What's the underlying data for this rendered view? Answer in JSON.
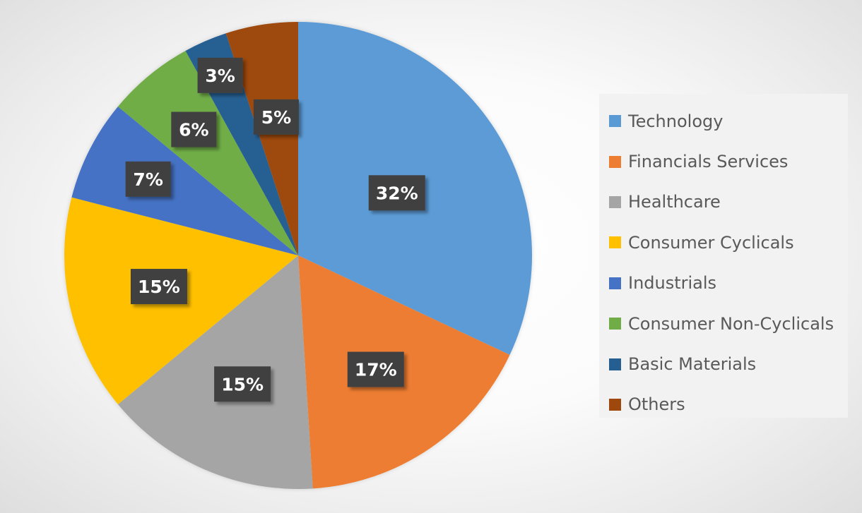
{
  "chart_data": {
    "type": "pie",
    "title": "",
    "start_angle": 0,
    "direction": "clockwise",
    "legend_position": "right",
    "slices": [
      {
        "name": "Technology",
        "value": 32,
        "label": "32%",
        "color": "#5b9bd5"
      },
      {
        "name": "Financials Services",
        "value": 17,
        "label": "17%",
        "color": "#ed7d31"
      },
      {
        "name": "Healthcare",
        "value": 15,
        "label": "15%",
        "color": "#a5a5a5"
      },
      {
        "name": "Consumer Cyclicals",
        "value": 15,
        "label": "15%",
        "color": "#ffc000"
      },
      {
        "name": "Industrials",
        "value": 7,
        "label": "7%",
        "color": "#4472c4"
      },
      {
        "name": "Consumer Non-Cyclicals",
        "value": 6,
        "label": "6%",
        "color": "#70ad47"
      },
      {
        "name": "Basic Materials",
        "value": 3,
        "label": "3%",
        "color": "#255e91"
      },
      {
        "name": "Others",
        "value": 5,
        "label": "5%",
        "color": "#9e480e"
      }
    ]
  }
}
